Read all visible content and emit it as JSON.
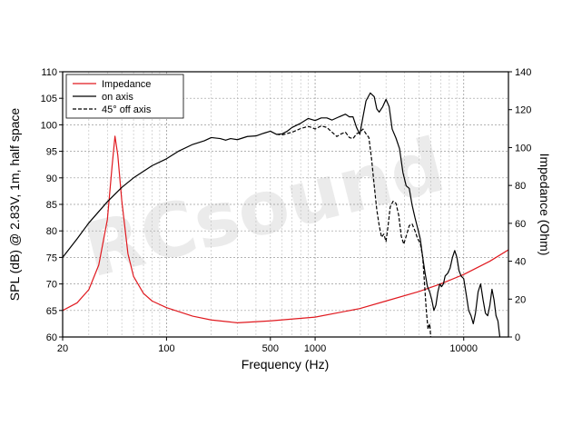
{
  "watermark": "RCsound",
  "chart_data": {
    "type": "line",
    "xscale": "log",
    "xlim": [
      20,
      20000
    ],
    "ylim": [
      60,
      110
    ],
    "y2lim": [
      0,
      140
    ],
    "xlabel": "Frequency (Hz)",
    "ylabel": "SPL (dB) @ 2.83V, 1m, half space",
    "y2label": "Impedance (Ohm)",
    "x_ticks": [
      20,
      100,
      500,
      1000,
      10000
    ],
    "x_tick_labels": [
      "20",
      "100",
      "500",
      "1000",
      "10000"
    ],
    "y_ticks": [
      60,
      65,
      70,
      75,
      80,
      85,
      90,
      95,
      100,
      105,
      110
    ],
    "y2_ticks": [
      0,
      20,
      40,
      60,
      80,
      100,
      120,
      140
    ],
    "grid": true,
    "legend": "top-left",
    "series": [
      {
        "name": "Impedance",
        "axis": "right",
        "color": "#e0191f",
        "dash": "solid",
        "points": [
          [
            20,
            14
          ],
          [
            25,
            18
          ],
          [
            30,
            25
          ],
          [
            35,
            38
          ],
          [
            40,
            62
          ],
          [
            43,
            90
          ],
          [
            45,
            106
          ],
          [
            47,
            96
          ],
          [
            50,
            72
          ],
          [
            55,
            44
          ],
          [
            60,
            32
          ],
          [
            70,
            23
          ],
          [
            80,
            19
          ],
          [
            100,
            15.5
          ],
          [
            150,
            11
          ],
          [
            200,
            9
          ],
          [
            300,
            7.5
          ],
          [
            500,
            8.5
          ],
          [
            1000,
            10.5
          ],
          [
            2000,
            15
          ],
          [
            3000,
            19
          ],
          [
            5000,
            24
          ],
          [
            7000,
            28
          ],
          [
            10000,
            33
          ],
          [
            15000,
            40
          ],
          [
            20000,
            46
          ]
        ]
      },
      {
        "name": "on axis",
        "axis": "left",
        "color": "#000000",
        "dash": "solid",
        "points": [
          [
            20,
            75
          ],
          [
            25,
            78.5
          ],
          [
            30,
            81.5
          ],
          [
            40,
            85.5
          ],
          [
            50,
            88.2
          ],
          [
            60,
            90
          ],
          [
            80,
            92.3
          ],
          [
            100,
            93.6
          ],
          [
            120,
            95
          ],
          [
            150,
            96.3
          ],
          [
            180,
            97
          ],
          [
            200,
            97.6
          ],
          [
            230,
            97.4
          ],
          [
            250,
            97.1
          ],
          [
            270,
            97.4
          ],
          [
            300,
            97.2
          ],
          [
            350,
            97.8
          ],
          [
            400,
            97.9
          ],
          [
            450,
            98.4
          ],
          [
            500,
            98.8
          ],
          [
            550,
            98.2
          ],
          [
            600,
            98.3
          ],
          [
            650,
            98.8
          ],
          [
            700,
            99.5
          ],
          [
            800,
            100.3
          ],
          [
            900,
            101.2
          ],
          [
            1000,
            100.8
          ],
          [
            1100,
            101.3
          ],
          [
            1200,
            101.3
          ],
          [
            1300,
            100.9
          ],
          [
            1450,
            101.5
          ],
          [
            1600,
            102
          ],
          [
            1700,
            101.5
          ],
          [
            1800,
            101.5
          ],
          [
            1900,
            99.5
          ],
          [
            2000,
            98.2
          ],
          [
            2100,
            101.5
          ],
          [
            2200,
            104.5
          ],
          [
            2350,
            106
          ],
          [
            2500,
            105.3
          ],
          [
            2600,
            103
          ],
          [
            2700,
            102.4
          ],
          [
            2850,
            103.4
          ],
          [
            3000,
            104.8
          ],
          [
            3150,
            103.4
          ],
          [
            3300,
            99.2
          ],
          [
            3500,
            97.5
          ],
          [
            3700,
            95.5
          ],
          [
            3900,
            91
          ],
          [
            4100,
            88.5
          ],
          [
            4300,
            88
          ],
          [
            4500,
            84.8
          ],
          [
            4700,
            82.5
          ],
          [
            4900,
            80.5
          ],
          [
            5100,
            78.5
          ],
          [
            5300,
            75
          ],
          [
            5500,
            72
          ],
          [
            5700,
            69.5
          ],
          [
            5900,
            68.5
          ],
          [
            6100,
            67
          ],
          [
            6300,
            65
          ],
          [
            6500,
            66
          ],
          [
            6700,
            68.5
          ],
          [
            6900,
            70
          ],
          [
            7100,
            69.5
          ],
          [
            7300,
            70
          ],
          [
            7500,
            71.5
          ],
          [
            7800,
            72
          ],
          [
            8100,
            73
          ],
          [
            8400,
            75
          ],
          [
            8700,
            76.3
          ],
          [
            9000,
            75
          ],
          [
            9300,
            72.5
          ],
          [
            9600,
            71.5
          ],
          [
            10000,
            71
          ],
          [
            10400,
            68
          ],
          [
            10800,
            65
          ],
          [
            11200,
            64
          ],
          [
            11600,
            62.5
          ],
          [
            12000,
            64.5
          ],
          [
            12500,
            68.5
          ],
          [
            13000,
            70
          ],
          [
            13500,
            67
          ],
          [
            14000,
            64.5
          ],
          [
            14500,
            64
          ],
          [
            15000,
            66
          ],
          [
            15500,
            69
          ],
          [
            16000,
            67
          ],
          [
            16500,
            64
          ],
          [
            17000,
            63
          ],
          [
            17500,
            60
          ]
        ]
      },
      {
        "name": "45° off axis",
        "axis": "left",
        "color": "#000000",
        "dash": "dashed",
        "points": [
          [
            550,
            98.2
          ],
          [
            600,
            98.1
          ],
          [
            700,
            98.6
          ],
          [
            800,
            99.3
          ],
          [
            900,
            99.7
          ],
          [
            950,
            99.5
          ],
          [
            1000,
            99.2
          ],
          [
            1100,
            99.8
          ],
          [
            1200,
            99.5
          ],
          [
            1300,
            98.6
          ],
          [
            1400,
            97.8
          ],
          [
            1500,
            98.3
          ],
          [
            1600,
            98.6
          ],
          [
            1700,
            97.6
          ],
          [
            1800,
            97.4
          ],
          [
            1900,
            98.3
          ],
          [
            2000,
            98.6
          ],
          [
            2100,
            99.2
          ],
          [
            2200,
            98.3
          ],
          [
            2300,
            97.6
          ],
          [
            2400,
            93.5
          ],
          [
            2500,
            88.5
          ],
          [
            2600,
            84
          ],
          [
            2700,
            81
          ],
          [
            2800,
            78.8
          ],
          [
            2900,
            79.4
          ],
          [
            3000,
            78
          ],
          [
            3100,
            81
          ],
          [
            3200,
            84.5
          ],
          [
            3350,
            85.6
          ],
          [
            3500,
            85.2
          ],
          [
            3650,
            83
          ],
          [
            3800,
            79
          ],
          [
            3950,
            77.5
          ],
          [
            4100,
            79
          ],
          [
            4300,
            81
          ],
          [
            4500,
            81.3
          ],
          [
            4700,
            80
          ],
          [
            4900,
            78.5
          ],
          [
            5100,
            77.7
          ],
          [
            5300,
            75
          ],
          [
            5450,
            70
          ],
          [
            5600,
            65
          ],
          [
            5750,
            61.5
          ],
          [
            5900,
            62.5
          ],
          [
            6000,
            60
          ]
        ]
      }
    ]
  }
}
